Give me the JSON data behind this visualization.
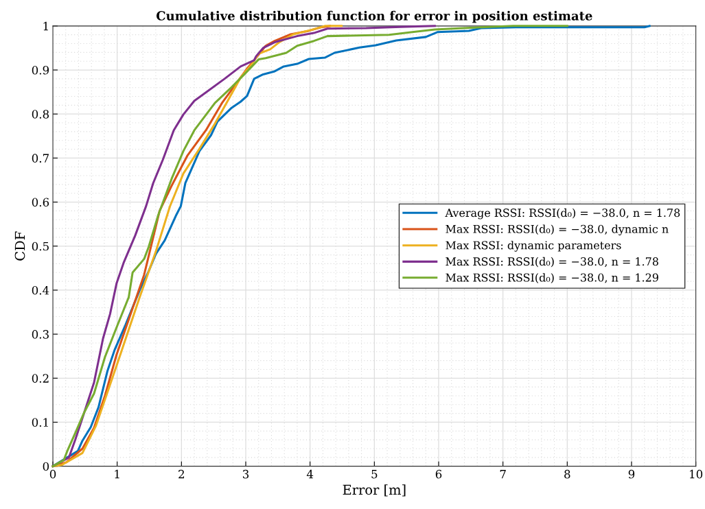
{
  "chart_data": {
    "type": "line",
    "title": "Cumulative distribution function for error in position estimate",
    "xlabel": "Error [m]",
    "ylabel": "CDF",
    "xlim": [
      0,
      10
    ],
    "ylim": [
      0,
      1
    ],
    "xticks": [
      0,
      1,
      2,
      3,
      4,
      5,
      6,
      7,
      8,
      9,
      10
    ],
    "yticks": [
      0,
      0.1,
      0.2,
      0.3,
      0.4,
      0.5,
      0.6,
      0.7,
      0.8,
      0.9,
      1
    ],
    "grid": true,
    "legend": "right",
    "line_style": "solid",
    "marker": "none",
    "series": [
      {
        "name": "Average RSSI: RSSI(d₀) = −38.0, n = 1.78",
        "color": "#0072bd",
        "x": [
          0,
          0.28,
          0.39,
          0.46,
          0.59,
          0.71,
          0.85,
          0.96,
          1.13,
          1.35,
          1.49,
          1.6,
          1.74,
          1.92,
          1.99,
          2.06,
          2.28,
          2.46,
          2.56,
          2.78,
          2.92,
          3.02,
          3.13,
          3.27,
          3.45,
          3.59,
          3.8,
          3.98,
          4.23,
          4.38,
          4.77,
          5.02,
          5.34,
          5.8,
          5.98,
          6.47,
          6.66,
          7.2,
          9.2,
          9.28
        ],
        "values": [
          0,
          0.025,
          0.035,
          0.058,
          0.089,
          0.134,
          0.217,
          0.264,
          0.321,
          0.4,
          0.443,
          0.482,
          0.513,
          0.571,
          0.591,
          0.643,
          0.716,
          0.752,
          0.783,
          0.814,
          0.828,
          0.841,
          0.88,
          0.89,
          0.897,
          0.908,
          0.914,
          0.925,
          0.928,
          0.939,
          0.951,
          0.956,
          0.967,
          0.975,
          0.986,
          0.989,
          0.995,
          0.997,
          0.997,
          1.0
        ]
      },
      {
        "name": "Max RSSI: RSSI(d₀) = −38.0, dynamic n",
        "color": "#d95319",
        "x": [
          0,
          0.21,
          0.46,
          0.64,
          0.81,
          0.99,
          1.21,
          1.42,
          1.66,
          1.85,
          2.09,
          2.38,
          2.63,
          2.81,
          3.02,
          3.13,
          3.31,
          3.45,
          3.7,
          3.98,
          4.17,
          4.31
        ],
        "values": [
          0,
          0.009,
          0.04,
          0.087,
          0.16,
          0.253,
          0.346,
          0.435,
          0.58,
          0.638,
          0.705,
          0.763,
          0.825,
          0.861,
          0.903,
          0.922,
          0.955,
          0.966,
          0.981,
          0.989,
          0.997,
          1.0
        ]
      },
      {
        "name": "Max RSSI: dynamic parameters",
        "color": "#edb120",
        "x": [
          0,
          0.14,
          0.46,
          0.67,
          0.99,
          1.35,
          1.6,
          1.82,
          2.03,
          2.28,
          2.52,
          2.7,
          2.92,
          3.1,
          3.2,
          3.38,
          3.52,
          3.74,
          4.02,
          4.23,
          4.49
        ],
        "values": [
          0,
          0.003,
          0.03,
          0.092,
          0.228,
          0.384,
          0.487,
          0.59,
          0.665,
          0.721,
          0.778,
          0.825,
          0.883,
          0.914,
          0.937,
          0.947,
          0.963,
          0.981,
          0.991,
          1.0,
          1.0
        ]
      },
      {
        "name": "Max RSSI: RSSI(d₀) = −38.0, n = 1.78",
        "color": "#7e2f8e",
        "x": [
          0,
          0.25,
          0.35,
          0.49,
          0.64,
          0.78,
          0.89,
          0.99,
          1.1,
          1.28,
          1.45,
          1.56,
          1.71,
          1.88,
          2.03,
          2.2,
          2.38,
          2.67,
          2.92,
          3.13,
          3.16,
          3.27,
          3.45,
          3.8,
          4.06,
          4.27,
          4.87,
          5.41,
          5.94
        ],
        "values": [
          0,
          0.02,
          0.061,
          0.123,
          0.19,
          0.29,
          0.346,
          0.415,
          0.462,
          0.524,
          0.591,
          0.643,
          0.696,
          0.763,
          0.799,
          0.83,
          0.849,
          0.88,
          0.908,
          0.922,
          0.931,
          0.95,
          0.963,
          0.977,
          0.984,
          0.994,
          0.995,
          0.998,
          1.0
        ]
      },
      {
        "name": "Max RSSI: RSSI(d₀) = −38.0, n = 1.29",
        "color": "#77ac30",
        "x": [
          0,
          0.17,
          0.22,
          0.35,
          0.49,
          0.64,
          0.81,
          0.99,
          1.18,
          1.24,
          1.42,
          1.49,
          1.64,
          1.85,
          2.03,
          2.2,
          2.52,
          2.78,
          2.99,
          3.2,
          3.31,
          3.63,
          3.8,
          4.06,
          4.27,
          5.23,
          5.59,
          5.94,
          6.66,
          7.16,
          8.0
        ],
        "values": [
          0,
          0.014,
          0.033,
          0.076,
          0.123,
          0.165,
          0.248,
          0.315,
          0.384,
          0.44,
          0.471,
          0.498,
          0.571,
          0.654,
          0.716,
          0.763,
          0.825,
          0.861,
          0.892,
          0.924,
          0.927,
          0.939,
          0.955,
          0.966,
          0.977,
          0.98,
          0.986,
          0.992,
          0.997,
          1.0,
          1.0
        ]
      }
    ]
  }
}
